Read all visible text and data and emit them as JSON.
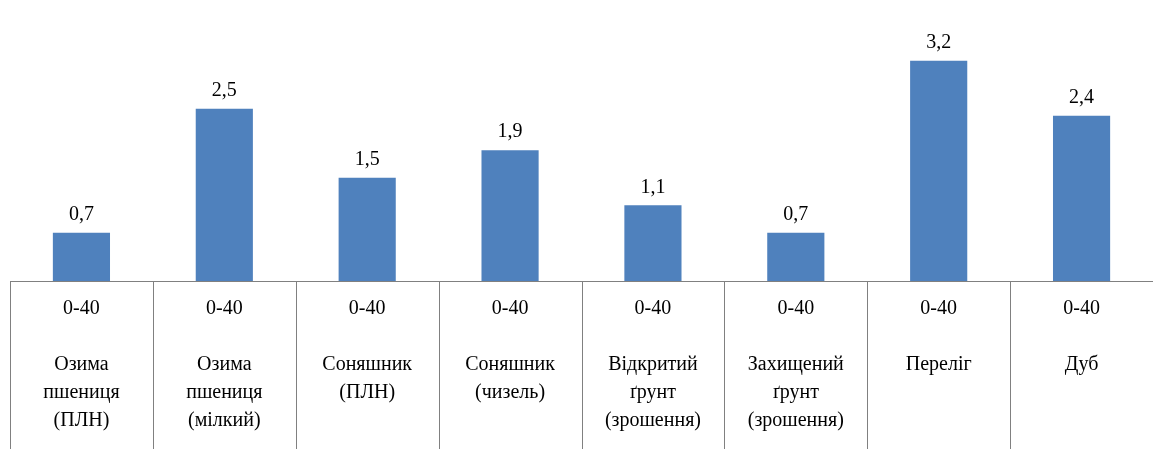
{
  "chart_data": {
    "type": "bar",
    "categories": [
      "0-40\nОзима\nпшениця\n(ПЛН)",
      "0-40\nОзима\nпшениця\n(мілкий)",
      "0-40\nСоняшник\n(ПЛН)",
      "0-40\nСоняшник\n(чизель)",
      "0-40\nВідкритий\nґрунт\n(зрошення)",
      "0-40\nЗахищений\nґрунт\n(зрошення)",
      "0-40\nПереліг",
      "0-40\nДуб"
    ],
    "values": [
      0.7,
      2.5,
      1.5,
      1.9,
      1.1,
      0.7,
      3.2,
      2.4
    ],
    "value_labels": [
      "0,7",
      "2,5",
      "1,5",
      "1,9",
      "1,1",
      "0,7",
      "3,2",
      "2,4"
    ],
    "color": "#4f81bd",
    "grid": false,
    "legend": false,
    "tick_labels": "x"
  }
}
